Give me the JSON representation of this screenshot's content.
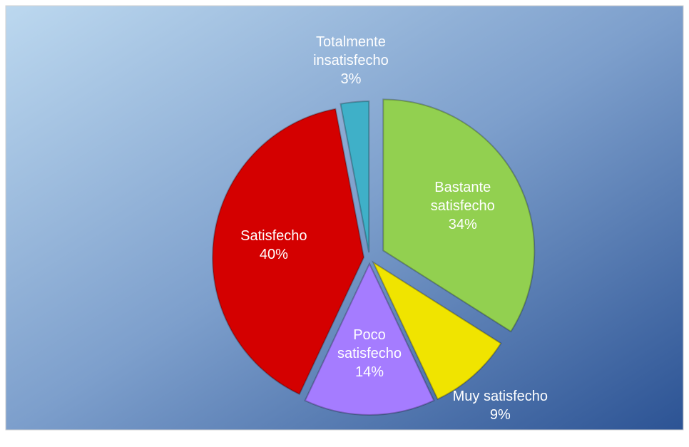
{
  "chart_data": {
    "type": "pie",
    "categories": [
      "Bastante satisfecho",
      "Muy satisfecho",
      "Poco satisfecho",
      "Satisfecho",
      "Totalmente insatisfecho"
    ],
    "values": [
      34,
      9,
      14,
      40,
      3
    ],
    "value_labels": [
      "34%",
      "9%",
      "14%",
      "40%",
      "3%"
    ],
    "colors": [
      "#92d050",
      "#f0e400",
      "#a57cff",
      "#d40000",
      "#3fb0c8"
    ]
  }
}
